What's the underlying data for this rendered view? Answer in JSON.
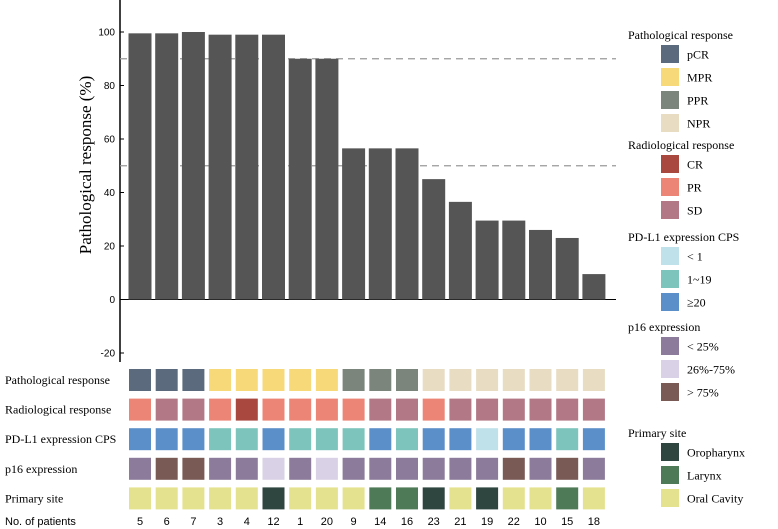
{
  "chart_data": {
    "type": "bar",
    "ylabel": "Pathological response (%)",
    "ylim": [
      -25,
      112
    ],
    "yticks": [
      -20,
      0,
      20,
      40,
      60,
      80,
      100
    ],
    "reference_lines": [
      90,
      50
    ],
    "bar_color": "#555555",
    "categories": [
      "5",
      "6",
      "7",
      "3",
      "4",
      "12",
      "1",
      "20",
      "9",
      "14",
      "16",
      "23",
      "21",
      "19",
      "22",
      "10",
      "15",
      "18"
    ],
    "values": [
      99.5,
      99.5,
      100,
      99,
      99,
      99,
      90,
      90,
      56.5,
      56.5,
      56.5,
      45,
      36.5,
      29.5,
      29.5,
      26,
      23,
      9.5
    ],
    "x_caption": "No. of patients",
    "heatmap_rows": [
      {
        "label": "Pathological response",
        "values": [
          "pCR",
          "pCR",
          "pCR",
          "MPR",
          "MPR",
          "MPR",
          "MPR",
          "MPR",
          "PPR",
          "PPR",
          "PPR",
          "NPR",
          "NPR",
          "NPR",
          "NPR",
          "NPR",
          "NPR",
          "NPR"
        ]
      },
      {
        "label": "Radiological response",
        "values": [
          "PR",
          "SD",
          "SD",
          "PR",
          "CR",
          "PR",
          "PR",
          "PR",
          "PR",
          "SD",
          "SD",
          "PR",
          "SD",
          "SD",
          "SD",
          "SD",
          "SD",
          "SD"
        ]
      },
      {
        "label": "PD-L1 expression CPS",
        "values": [
          "≥20",
          "≥20",
          "≥20",
          "1~19",
          "1~19",
          "≥20",
          "1~19",
          "1~19",
          "1~19",
          "≥20",
          "1~19",
          "≥20",
          "≥20",
          "< 1",
          "≥20",
          "≥20",
          "1~19",
          "≥20"
        ]
      },
      {
        "label": "p16 expression",
        "values": [
          "< 25%",
          "> 75%",
          "> 75%",
          "< 25%",
          "< 25%",
          "26%-75%",
          "< 25%",
          "26%-75%",
          "< 25%",
          "< 25%",
          "< 25%",
          "< 25%",
          "< 25%",
          "< 25%",
          "> 75%",
          "< 25%",
          "> 75%",
          "< 25%"
        ]
      },
      {
        "label": "Primary site",
        "values": [
          "Oral Cavity",
          "Oral Cavity",
          "Oral Cavity",
          "Oral Cavity",
          "Oral Cavity",
          "Oropharynx",
          "Oral Cavity",
          "Oral Cavity",
          "Oral Cavity",
          "Larynx",
          "Larynx",
          "Oropharynx",
          "Oral Cavity",
          "Oropharynx",
          "Oral Cavity",
          "Oral Cavity",
          "Larynx",
          "Oral Cavity"
        ]
      }
    ],
    "legend": [
      {
        "title": "Pathological response",
        "items": [
          {
            "label": "pCR",
            "color": "#5b6b7d"
          },
          {
            "label": "MPR",
            "color": "#f7d97a"
          },
          {
            "label": "PPR",
            "color": "#7c857b"
          },
          {
            "label": "NPR",
            "color": "#e8dcc3"
          }
        ]
      },
      {
        "title": "Radiological  response",
        "items": [
          {
            "label": "CR",
            "color": "#a8483f"
          },
          {
            "label": "PR",
            "color": "#ec8576"
          },
          {
            "label": "SD",
            "color": "#b27886"
          }
        ]
      },
      {
        "title": "PD-L1 expression CPS",
        "items": [
          {
            "label": "< 1",
            "color": "#bfe2ea"
          },
          {
            "label": "1~19",
            "color": "#7cc4bc"
          },
          {
            "label": "≥20",
            "color": "#5b8fc9"
          }
        ]
      },
      {
        "title": "p16 expression",
        "items": [
          {
            "label": "< 25%",
            "color": "#8c7b9b"
          },
          {
            "label": "26%-75%",
            "color": "#d9d1e5"
          },
          {
            "label": "> 75%",
            "color": "#7a5a55"
          }
        ]
      },
      {
        "title": "Primary site",
        "items": [
          {
            "label": "Oropharynx",
            "color": "#2f4540"
          },
          {
            "label": "Larynx",
            "color": "#4f7a58"
          },
          {
            "label": "Oral Cavity",
            "color": "#e5e28f"
          }
        ]
      }
    ]
  }
}
